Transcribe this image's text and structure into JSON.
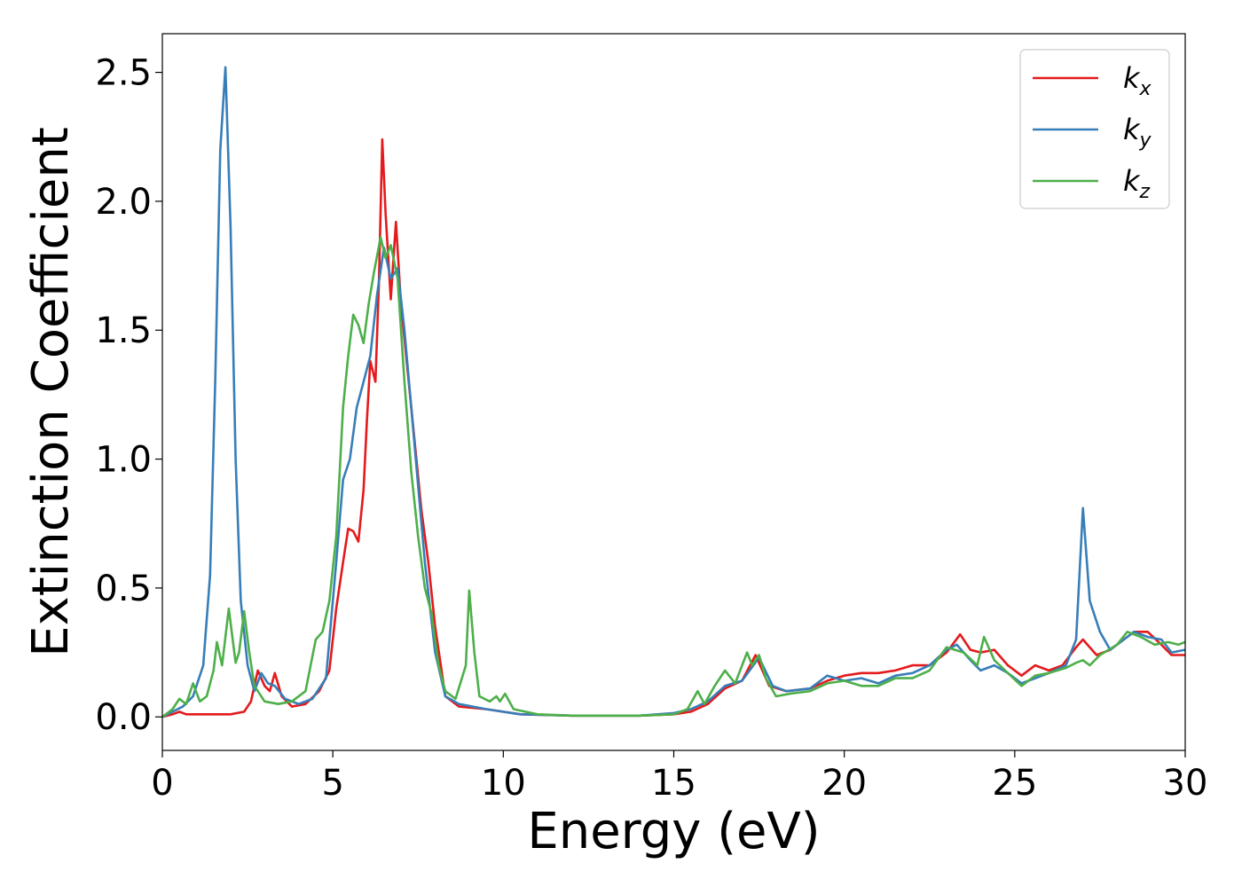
{
  "chart_data": {
    "type": "line",
    "xlabel": "Energy (eV)",
    "ylabel": "Extinction Coefficient",
    "xlim": [
      0,
      30
    ],
    "ylim": [
      -0.13,
      2.65
    ],
    "xticks": [
      "0",
      "5",
      "10",
      "15",
      "20",
      "25",
      "30"
    ],
    "yticks": [
      "0.0",
      "0.5",
      "1.0",
      "1.5",
      "2.0",
      "2.5"
    ],
    "legend_position": "top-right",
    "series": [
      {
        "name": "k_x",
        "label_main": "k",
        "label_sub": "x",
        "color": "#e41a1c",
        "points": [
          [
            0,
            0.0
          ],
          [
            0.3,
            0.01
          ],
          [
            0.5,
            0.02
          ],
          [
            0.7,
            0.01
          ],
          [
            1.0,
            0.01
          ],
          [
            1.5,
            0.01
          ],
          [
            2.0,
            0.01
          ],
          [
            2.4,
            0.02
          ],
          [
            2.6,
            0.06
          ],
          [
            2.8,
            0.18
          ],
          [
            3.0,
            0.12
          ],
          [
            3.15,
            0.1
          ],
          [
            3.3,
            0.17
          ],
          [
            3.5,
            0.08
          ],
          [
            3.8,
            0.04
          ],
          [
            4.2,
            0.05
          ],
          [
            4.6,
            0.1
          ],
          [
            4.9,
            0.18
          ],
          [
            5.1,
            0.42
          ],
          [
            5.3,
            0.6
          ],
          [
            5.45,
            0.73
          ],
          [
            5.6,
            0.72
          ],
          [
            5.75,
            0.68
          ],
          [
            5.9,
            0.88
          ],
          [
            6.0,
            1.15
          ],
          [
            6.1,
            1.38
          ],
          [
            6.25,
            1.3
          ],
          [
            6.35,
            1.68
          ],
          [
            6.45,
            2.24
          ],
          [
            6.55,
            1.95
          ],
          [
            6.7,
            1.62
          ],
          [
            6.85,
            1.92
          ],
          [
            7.0,
            1.6
          ],
          [
            7.3,
            1.2
          ],
          [
            7.6,
            0.8
          ],
          [
            7.8,
            0.6
          ],
          [
            8.0,
            0.35
          ],
          [
            8.3,
            0.08
          ],
          [
            8.7,
            0.04
          ],
          [
            9.5,
            0.03
          ],
          [
            10.5,
            0.01
          ],
          [
            12.0,
            0.005
          ],
          [
            14.0,
            0.005
          ],
          [
            15.0,
            0.01
          ],
          [
            15.5,
            0.02
          ],
          [
            16.0,
            0.05
          ],
          [
            16.5,
            0.11
          ],
          [
            17.0,
            0.14
          ],
          [
            17.4,
            0.24
          ],
          [
            17.8,
            0.12
          ],
          [
            18.3,
            0.1
          ],
          [
            19.0,
            0.11
          ],
          [
            19.5,
            0.14
          ],
          [
            20.0,
            0.16
          ],
          [
            20.5,
            0.17
          ],
          [
            21.0,
            0.17
          ],
          [
            21.5,
            0.18
          ],
          [
            22.0,
            0.2
          ],
          [
            22.5,
            0.2
          ],
          [
            23.0,
            0.25
          ],
          [
            23.4,
            0.32
          ],
          [
            23.7,
            0.26
          ],
          [
            24.0,
            0.25
          ],
          [
            24.4,
            0.26
          ],
          [
            24.8,
            0.2
          ],
          [
            25.2,
            0.16
          ],
          [
            25.6,
            0.2
          ],
          [
            26.0,
            0.18
          ],
          [
            26.4,
            0.2
          ],
          [
            26.8,
            0.27
          ],
          [
            27.0,
            0.3
          ],
          [
            27.4,
            0.24
          ],
          [
            27.8,
            0.26
          ],
          [
            28.2,
            0.3
          ],
          [
            28.5,
            0.33
          ],
          [
            28.9,
            0.33
          ],
          [
            29.3,
            0.28
          ],
          [
            29.6,
            0.24
          ],
          [
            30.0,
            0.24
          ]
        ]
      },
      {
        "name": "k_y",
        "label_main": "k",
        "label_sub": "y",
        "color": "#377eb8",
        "points": [
          [
            0,
            0.0
          ],
          [
            0.3,
            0.02
          ],
          [
            0.6,
            0.04
          ],
          [
            0.9,
            0.08
          ],
          [
            1.2,
            0.2
          ],
          [
            1.4,
            0.55
          ],
          [
            1.55,
            1.3
          ],
          [
            1.7,
            2.2
          ],
          [
            1.85,
            2.52
          ],
          [
            2.0,
            1.9
          ],
          [
            2.15,
            1.0
          ],
          [
            2.3,
            0.45
          ],
          [
            2.5,
            0.2
          ],
          [
            2.7,
            0.1
          ],
          [
            2.9,
            0.17
          ],
          [
            3.1,
            0.13
          ],
          [
            3.3,
            0.12
          ],
          [
            3.6,
            0.07
          ],
          [
            4.0,
            0.05
          ],
          [
            4.4,
            0.07
          ],
          [
            4.8,
            0.15
          ],
          [
            5.1,
            0.6
          ],
          [
            5.3,
            0.92
          ],
          [
            5.5,
            1.0
          ],
          [
            5.7,
            1.2
          ],
          [
            5.9,
            1.3
          ],
          [
            6.1,
            1.4
          ],
          [
            6.3,
            1.64
          ],
          [
            6.5,
            1.82
          ],
          [
            6.7,
            1.7
          ],
          [
            6.9,
            1.74
          ],
          [
            7.1,
            1.5
          ],
          [
            7.4,
            1.05
          ],
          [
            7.7,
            0.6
          ],
          [
            8.0,
            0.25
          ],
          [
            8.3,
            0.08
          ],
          [
            8.7,
            0.05
          ],
          [
            9.5,
            0.03
          ],
          [
            10.5,
            0.01
          ],
          [
            12.0,
            0.005
          ],
          [
            14.0,
            0.005
          ],
          [
            15.0,
            0.015
          ],
          [
            15.5,
            0.03
          ],
          [
            16.0,
            0.06
          ],
          [
            16.5,
            0.12
          ],
          [
            17.0,
            0.14
          ],
          [
            17.5,
            0.23
          ],
          [
            17.9,
            0.12
          ],
          [
            18.3,
            0.1
          ],
          [
            19.0,
            0.11
          ],
          [
            19.5,
            0.16
          ],
          [
            20.0,
            0.14
          ],
          [
            20.5,
            0.15
          ],
          [
            21.0,
            0.13
          ],
          [
            21.5,
            0.16
          ],
          [
            22.0,
            0.17
          ],
          [
            22.5,
            0.2
          ],
          [
            23.0,
            0.26
          ],
          [
            23.3,
            0.28
          ],
          [
            23.7,
            0.22
          ],
          [
            24.0,
            0.18
          ],
          [
            24.4,
            0.2
          ],
          [
            24.8,
            0.17
          ],
          [
            25.2,
            0.13
          ],
          [
            25.6,
            0.15
          ],
          [
            26.0,
            0.17
          ],
          [
            26.5,
            0.2
          ],
          [
            26.8,
            0.3
          ],
          [
            27.0,
            0.81
          ],
          [
            27.2,
            0.45
          ],
          [
            27.5,
            0.33
          ],
          [
            27.8,
            0.26
          ],
          [
            28.2,
            0.3
          ],
          [
            28.5,
            0.33
          ],
          [
            28.9,
            0.31
          ],
          [
            29.3,
            0.3
          ],
          [
            29.6,
            0.25
          ],
          [
            30.0,
            0.26
          ]
        ]
      },
      {
        "name": "k_z",
        "label_main": "k",
        "label_sub": "z",
        "color": "#4daf4a",
        "points": [
          [
            0,
            0.0
          ],
          [
            0.3,
            0.03
          ],
          [
            0.5,
            0.07
          ],
          [
            0.7,
            0.05
          ],
          [
            0.9,
            0.13
          ],
          [
            1.1,
            0.06
          ],
          [
            1.3,
            0.08
          ],
          [
            1.5,
            0.18
          ],
          [
            1.6,
            0.29
          ],
          [
            1.75,
            0.2
          ],
          [
            1.95,
            0.42
          ],
          [
            2.15,
            0.21
          ],
          [
            2.25,
            0.25
          ],
          [
            2.4,
            0.41
          ],
          [
            2.55,
            0.25
          ],
          [
            2.7,
            0.12
          ],
          [
            3.0,
            0.06
          ],
          [
            3.4,
            0.05
          ],
          [
            3.8,
            0.06
          ],
          [
            4.2,
            0.1
          ],
          [
            4.5,
            0.3
          ],
          [
            4.7,
            0.33
          ],
          [
            4.9,
            0.45
          ],
          [
            5.1,
            0.7
          ],
          [
            5.2,
            0.95
          ],
          [
            5.3,
            1.2
          ],
          [
            5.45,
            1.4
          ],
          [
            5.6,
            1.56
          ],
          [
            5.75,
            1.52
          ],
          [
            5.9,
            1.45
          ],
          [
            6.05,
            1.6
          ],
          [
            6.2,
            1.72
          ],
          [
            6.4,
            1.86
          ],
          [
            6.55,
            1.78
          ],
          [
            6.7,
            1.83
          ],
          [
            6.9,
            1.7
          ],
          [
            7.1,
            1.3
          ],
          [
            7.3,
            0.95
          ],
          [
            7.5,
            0.7
          ],
          [
            7.7,
            0.5
          ],
          [
            7.9,
            0.4
          ],
          [
            8.1,
            0.2
          ],
          [
            8.3,
            0.1
          ],
          [
            8.6,
            0.07
          ],
          [
            8.9,
            0.2
          ],
          [
            9.0,
            0.49
          ],
          [
            9.15,
            0.25
          ],
          [
            9.3,
            0.08
          ],
          [
            9.6,
            0.06
          ],
          [
            9.8,
            0.08
          ],
          [
            9.9,
            0.06
          ],
          [
            10.05,
            0.09
          ],
          [
            10.3,
            0.03
          ],
          [
            11.0,
            0.01
          ],
          [
            12.0,
            0.005
          ],
          [
            14.0,
            0.005
          ],
          [
            15.0,
            0.01
          ],
          [
            15.4,
            0.03
          ],
          [
            15.7,
            0.1
          ],
          [
            15.9,
            0.05
          ],
          [
            16.2,
            0.12
          ],
          [
            16.5,
            0.18
          ],
          [
            16.8,
            0.13
          ],
          [
            17.15,
            0.25
          ],
          [
            17.3,
            0.2
          ],
          [
            17.5,
            0.24
          ],
          [
            17.7,
            0.15
          ],
          [
            18.0,
            0.08
          ],
          [
            18.4,
            0.09
          ],
          [
            19.0,
            0.1
          ],
          [
            19.5,
            0.13
          ],
          [
            20.0,
            0.14
          ],
          [
            20.5,
            0.12
          ],
          [
            21.0,
            0.12
          ],
          [
            21.5,
            0.15
          ],
          [
            22.0,
            0.15
          ],
          [
            22.5,
            0.18
          ],
          [
            23.0,
            0.27
          ],
          [
            23.5,
            0.25
          ],
          [
            23.9,
            0.2
          ],
          [
            24.1,
            0.31
          ],
          [
            24.4,
            0.22
          ],
          [
            24.8,
            0.17
          ],
          [
            25.2,
            0.12
          ],
          [
            25.6,
            0.16
          ],
          [
            26.0,
            0.17
          ],
          [
            26.5,
            0.19
          ],
          [
            26.8,
            0.21
          ],
          [
            27.0,
            0.22
          ],
          [
            27.2,
            0.2
          ],
          [
            27.5,
            0.24
          ],
          [
            28.0,
            0.28
          ],
          [
            28.3,
            0.33
          ],
          [
            28.7,
            0.31
          ],
          [
            29.1,
            0.28
          ],
          [
            29.5,
            0.29
          ],
          [
            29.8,
            0.28
          ],
          [
            30.0,
            0.29
          ]
        ]
      }
    ]
  }
}
